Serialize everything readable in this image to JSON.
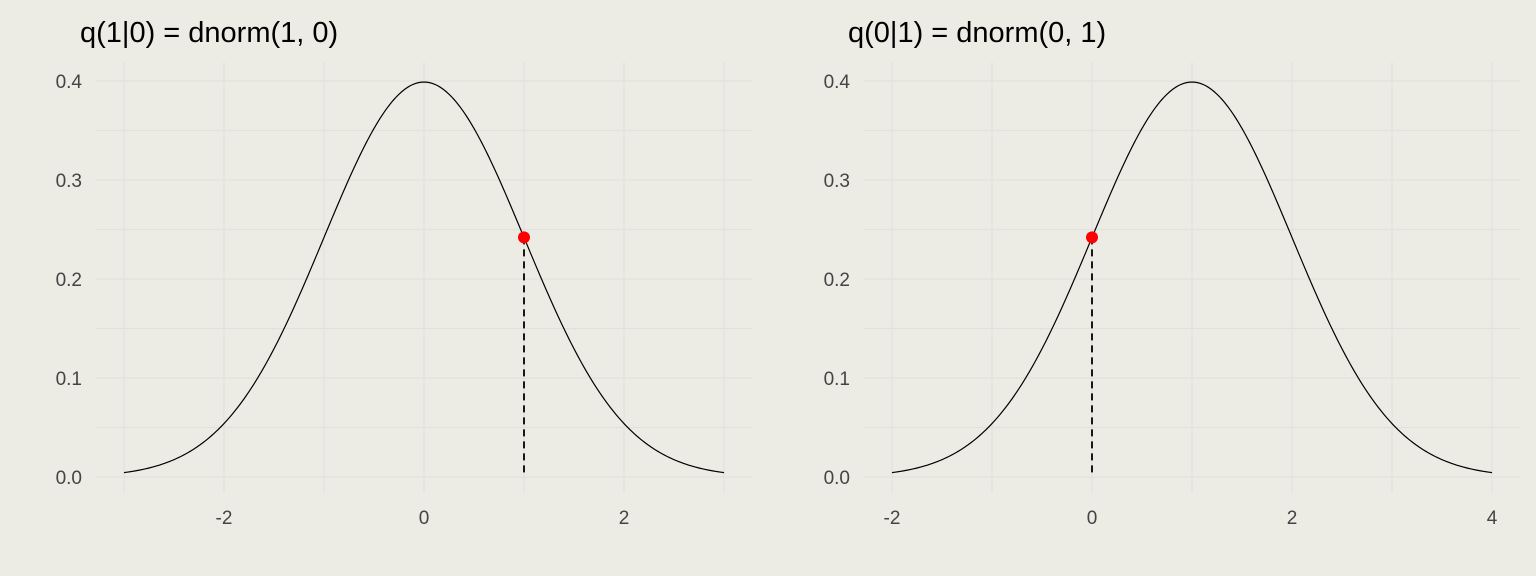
{
  "chart_data": [
    {
      "type": "line",
      "title": "q(1|0) = dnorm(1, 0)",
      "mean": 0,
      "xlim": [
        -3,
        3
      ],
      "ylim": [
        0,
        0.4
      ],
      "x_ticks": [
        "-2",
        "0",
        "2"
      ],
      "y_ticks": [
        "0.0",
        "0.1",
        "0.2",
        "0.3",
        "0.4"
      ],
      "highlight_point": {
        "x": 1,
        "y": 0.242
      },
      "point_color": "#ff0000",
      "grid": true
    },
    {
      "type": "line",
      "title": "q(0|1) = dnorm(0, 1)",
      "mean": 1,
      "xlim": [
        -2,
        4
      ],
      "ylim": [
        0,
        0.4
      ],
      "x_ticks": [
        "-2",
        "0",
        "2",
        "4"
      ],
      "y_ticks": [
        "0.0",
        "0.1",
        "0.2",
        "0.3",
        "0.4"
      ],
      "highlight_point": {
        "x": 0,
        "y": 0.242
      },
      "point_color": "#ff0000",
      "grid": true
    }
  ]
}
